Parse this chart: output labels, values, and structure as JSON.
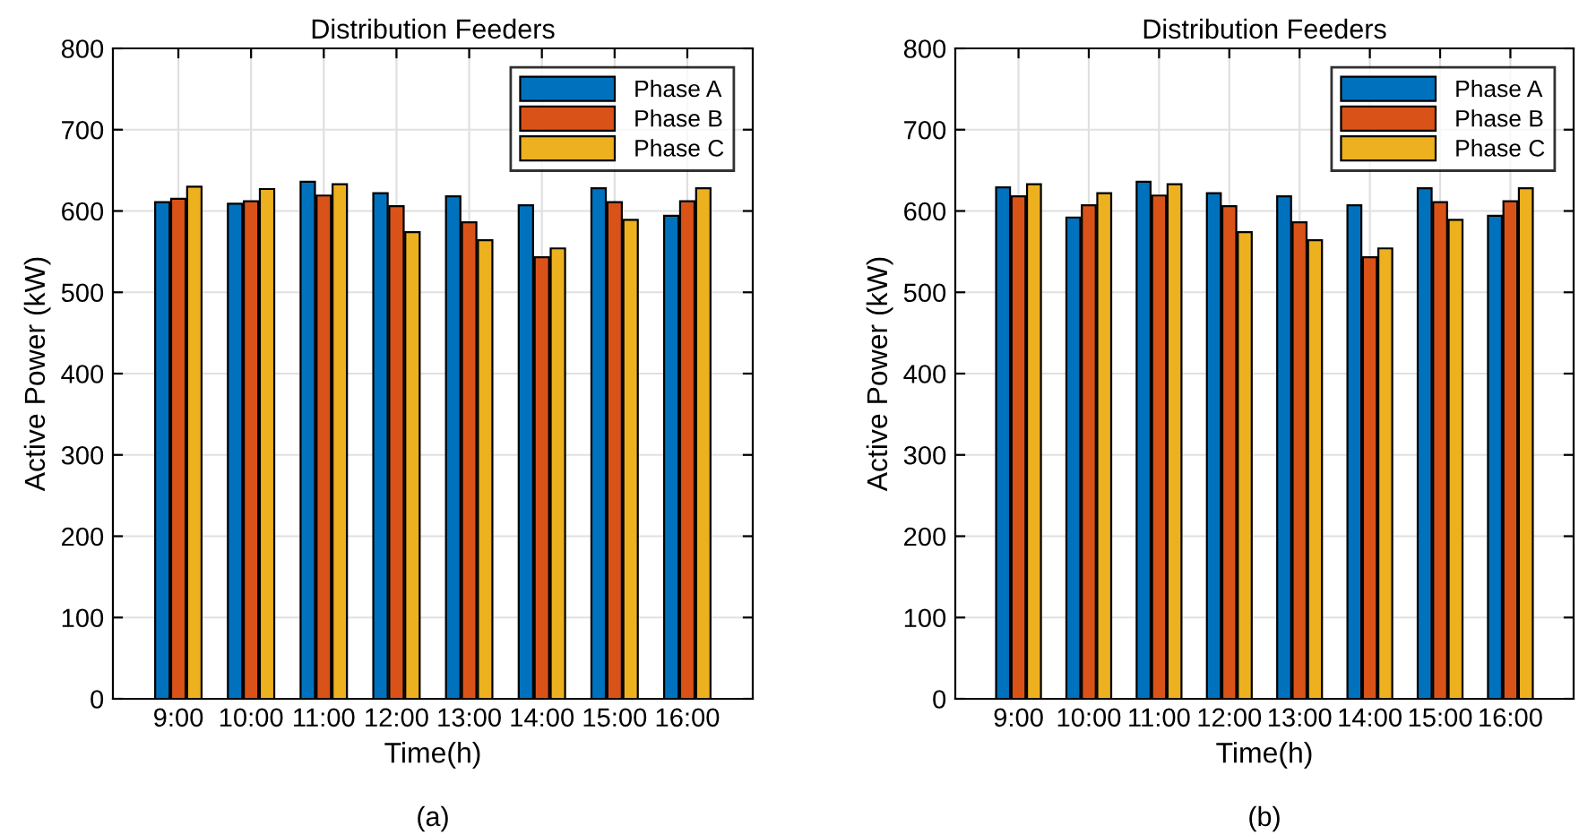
{
  "chart_data": [
    {
      "type": "bar",
      "title": "Distribution Feeders",
      "xlabel": "Time(h)",
      "ylabel": "Active Power (kW)",
      "annotations": [
        "(a)"
      ],
      "categories": [
        "9:00",
        "10:00",
        "11:00",
        "12:00",
        "13:00",
        "14:00",
        "15:00",
        "16:00"
      ],
      "series": [
        {
          "name": "Phase A",
          "color": "#0072bd",
          "values": [
            611,
            609,
            636,
            622,
            618,
            607,
            628,
            594
          ]
        },
        {
          "name": "Phase B",
          "color": "#d95319",
          "values": [
            615,
            612,
            619,
            606,
            586,
            543,
            611,
            612
          ]
        },
        {
          "name": "Phase C",
          "color": "#edb120",
          "values": [
            630,
            627,
            633,
            574,
            564,
            554,
            589,
            628
          ]
        }
      ],
      "ylim": [
        0,
        800
      ],
      "yticks": [
        0,
        100,
        200,
        300,
        400,
        500,
        600,
        700,
        800
      ],
      "grid": true,
      "legend": "top right"
    },
    {
      "type": "bar",
      "title": "Distribution Feeders",
      "xlabel": "Time(h)",
      "ylabel": "Active Power (kW)",
      "annotations": [
        "(b)"
      ],
      "categories": [
        "9:00",
        "10:00",
        "11:00",
        "12:00",
        "13:00",
        "14:00",
        "15:00",
        "16:00"
      ],
      "series": [
        {
          "name": "Phase A",
          "color": "#0072bd",
          "values": [
            629,
            592,
            636,
            622,
            618,
            607,
            628,
            594
          ]
        },
        {
          "name": "Phase B",
          "color": "#d95319",
          "values": [
            618,
            607,
            619,
            606,
            586,
            543,
            611,
            612
          ]
        },
        {
          "name": "Phase C",
          "color": "#edb120",
          "values": [
            633,
            622,
            633,
            574,
            564,
            554,
            589,
            628
          ]
        }
      ],
      "ylim": [
        0,
        800
      ],
      "yticks": [
        0,
        100,
        200,
        300,
        400,
        500,
        600,
        700,
        800
      ],
      "grid": true,
      "legend": "top right"
    }
  ]
}
